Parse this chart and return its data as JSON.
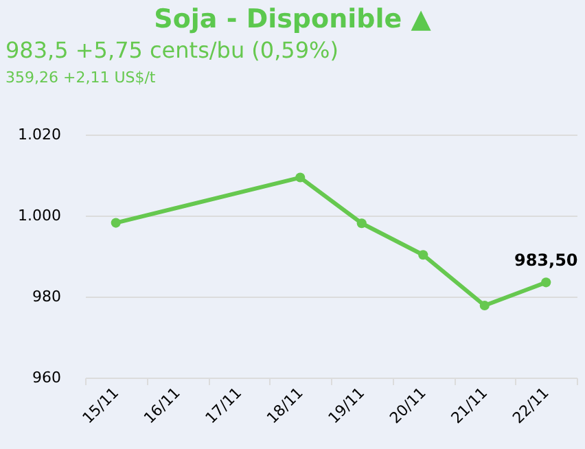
{
  "chart_data": {
    "type": "line",
    "title": "Soja - Disponible ▲",
    "subtitle": "983,5 +5,75 cents/bu (0,59%)",
    "annotations": [
      "359,26 +2,11 US$/t"
    ],
    "categories": [
      "15/11",
      "16/11",
      "17/11",
      "18/11",
      "19/11",
      "20/11",
      "21/11",
      "22/11"
    ],
    "series": [
      {
        "color": "#66c84f",
        "values": [
          998.2,
          null,
          null,
          1009.4,
          998.1,
          990.3,
          977.8,
          983.5
        ],
        "value_labels": [
          null,
          null,
          null,
          null,
          null,
          null,
          null,
          "983,50"
        ]
      }
    ],
    "ylim": [
      960,
      1020
    ],
    "yticks": [
      960,
      980,
      {
        "value": 1000,
        "label": "1.000"
      },
      {
        "value": 1020,
        "label": "1.020"
      }
    ],
    "grid": "y",
    "marker": "circle",
    "line_style": "solid"
  }
}
